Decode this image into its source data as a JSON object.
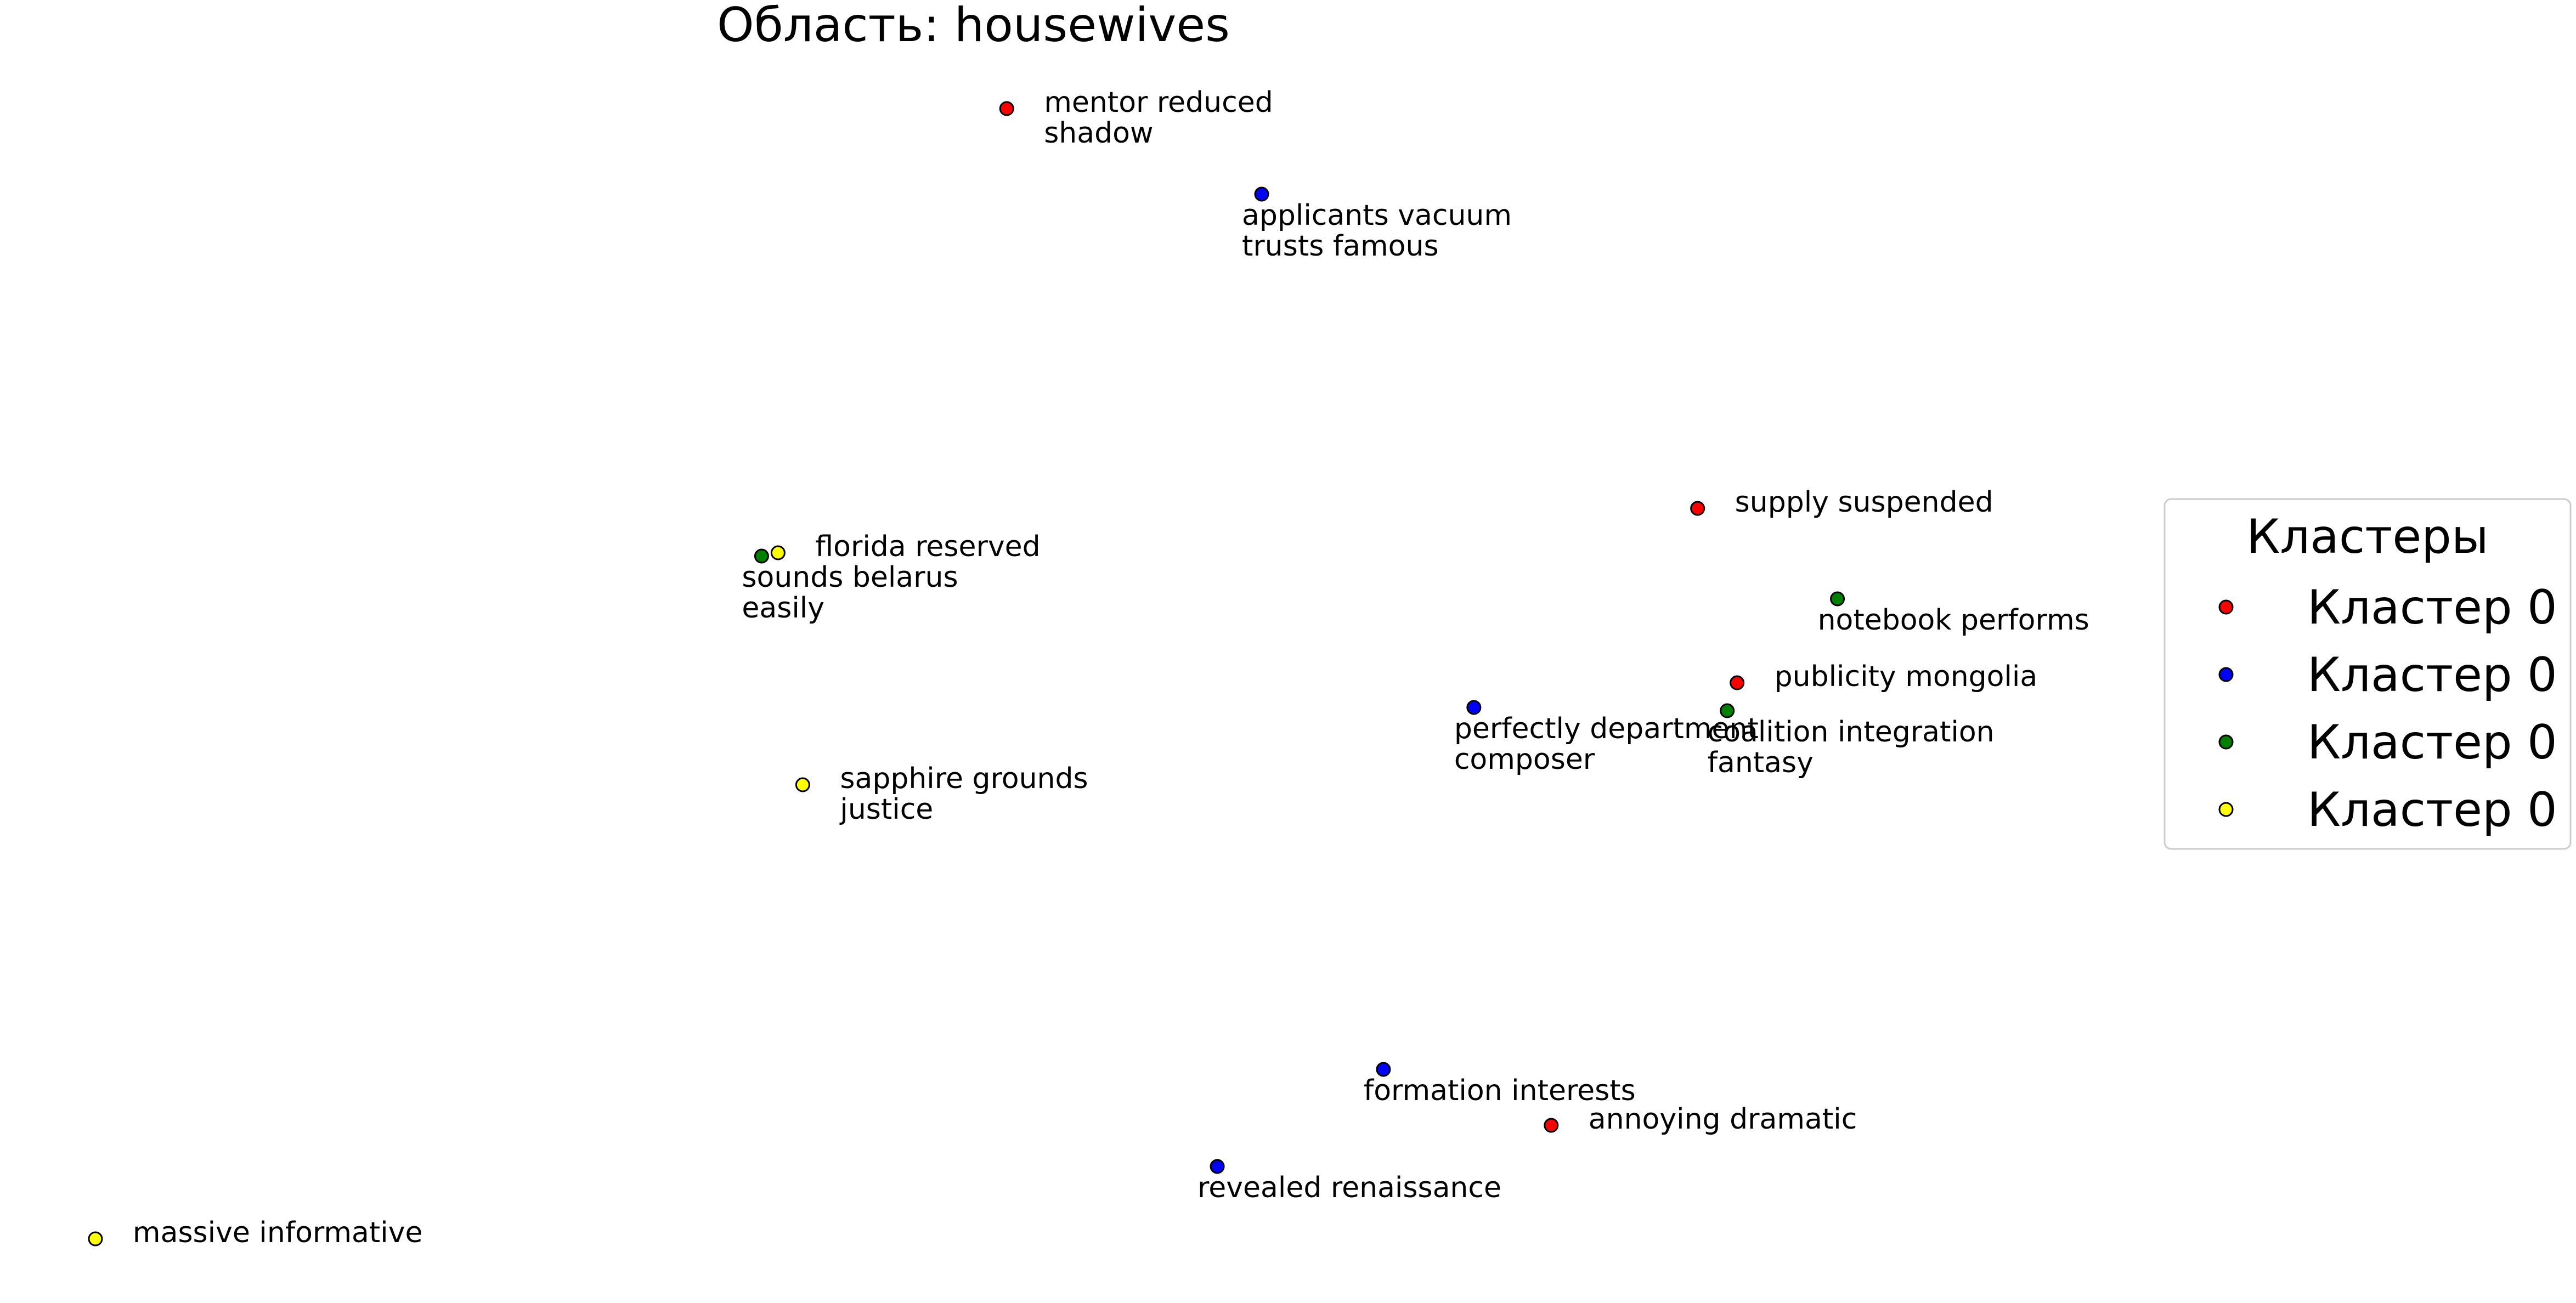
{
  "chart_data": {
    "type": "scatter",
    "title": "Область: housewives",
    "xlabel": "",
    "ylabel": "",
    "grid": false,
    "axes_visible": false,
    "xlim": [
      0,
      1566
    ],
    "ylim": [
      0,
      792
    ],
    "legend": {
      "title": "Кластеры",
      "placement": "right",
      "entries": [
        {
          "label": "Кластер 0",
          "color": "#ff0000"
        },
        {
          "label": "Кластер 0",
          "color": "#0000ff"
        },
        {
          "label": "Кластер 0",
          "color": "#008000"
        },
        {
          "label": "Кластер 0",
          "color": "#ffff00"
        }
      ]
    },
    "series": [
      {
        "color": "#ff0000",
        "points": [
          {
            "x": 612,
            "y": 66,
            "label": [
              "mentor reduced",
              "shadow"
            ],
            "label_pos": "right"
          },
          {
            "x": 1032,
            "y": 309,
            "label": [
              "supply suspended"
            ],
            "label_pos": "right"
          },
          {
            "x": 1056,
            "y": 415,
            "label": [
              "publicity mongolia"
            ],
            "label_pos": "right"
          },
          {
            "x": 943,
            "y": 684,
            "label": [
              "annoying dramatic"
            ],
            "label_pos": "right"
          }
        ]
      },
      {
        "color": "#0000ff",
        "points": [
          {
            "x": 767,
            "y": 118,
            "label": [
              "applicants vacuum",
              "trusts famous"
            ],
            "label_pos": "below"
          },
          {
            "x": 896,
            "y": 430,
            "label": [
              "perfectly department",
              "composer"
            ],
            "label_pos": "below"
          },
          {
            "x": 841,
            "y": 650,
            "label": [
              "formation interests"
            ],
            "label_pos": "below"
          },
          {
            "x": 740,
            "y": 709,
            "label": [
              "revealed renaissance"
            ],
            "label_pos": "below"
          }
        ]
      },
      {
        "color": "#008000",
        "points": [
          {
            "x": 463,
            "y": 338,
            "label": [
              "sounds belarus",
              "easily"
            ],
            "label_pos": "below"
          },
          {
            "x": 1117,
            "y": 364,
            "label": [
              "notebook performs"
            ],
            "label_pos": "below"
          },
          {
            "x": 1050,
            "y": 432,
            "label": [
              "coalition integration",
              "fantasy"
            ],
            "label_pos": "below"
          }
        ]
      },
      {
        "color": "#ffff00",
        "points": [
          {
            "x": 473,
            "y": 336,
            "label": [
              "florida reserved"
            ],
            "label_pos": "right"
          },
          {
            "x": 488,
            "y": 477,
            "label": [
              "sapphire grounds",
              "justice"
            ],
            "label_pos": "right"
          },
          {
            "x": 58,
            "y": 753,
            "label": [
              "massive informative"
            ],
            "label_pos": "right"
          }
        ]
      }
    ]
  }
}
